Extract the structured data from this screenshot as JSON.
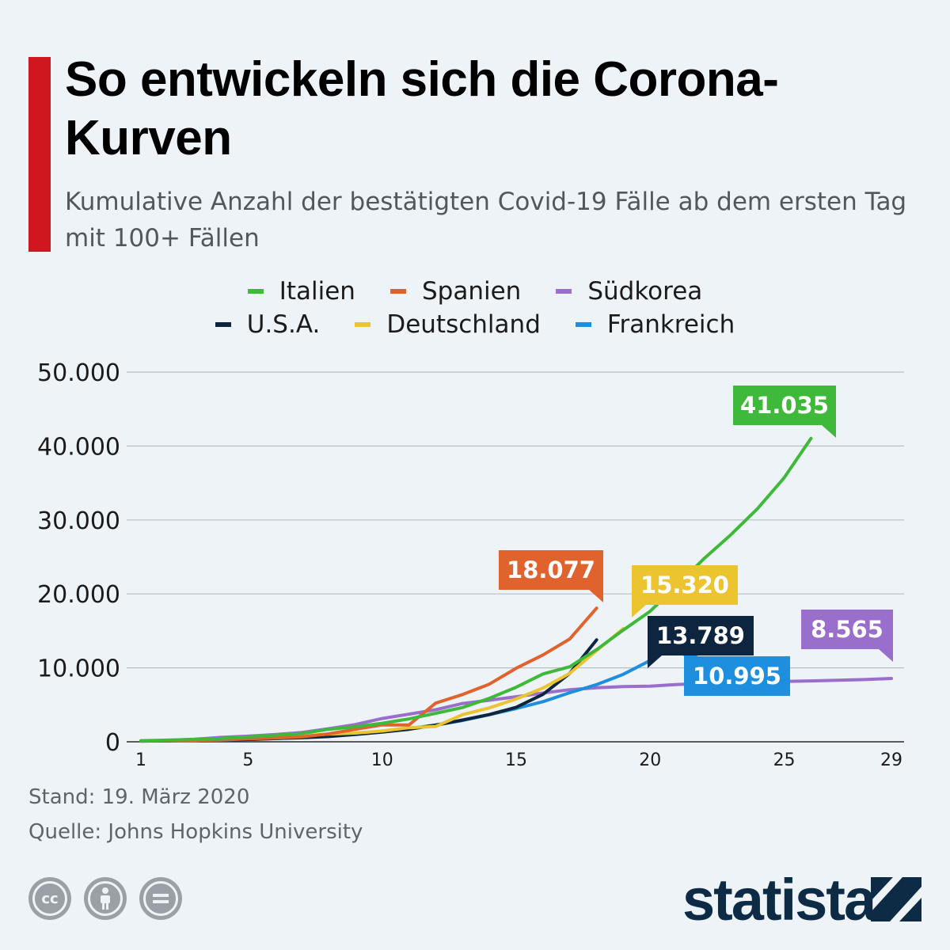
{
  "header": {
    "title": "So entwickeln sich die Corona-Kurven",
    "subtitle": "Kumulative Anzahl der bestätigten Covid-19 Fälle ab dem ersten Tag mit 100+ Fällen"
  },
  "legend": {
    "row1": [
      {
        "label": "Italien",
        "color": "#3fb93a"
      },
      {
        "label": "Spanien",
        "color": "#e0622d"
      },
      {
        "label": "Südkorea",
        "color": "#9a6ecb"
      }
    ],
    "row2": [
      {
        "label": "U.S.A.",
        "color": "#0e2540"
      },
      {
        "label": "Deutschland",
        "color": "#ebc42f"
      },
      {
        "label": "Frankreich",
        "color": "#1e8fde"
      }
    ]
  },
  "chart_data": {
    "type": "line",
    "title": "So entwickeln sich die Corona-Kurven",
    "subtitle": "Kumulative Anzahl der bestätigten Covid-19 Fälle ab dem ersten Tag mit 100+ Fällen",
    "xlabel": "",
    "ylabel": "",
    "xlim": [
      1,
      29
    ],
    "ylim": [
      0,
      50000
    ],
    "x_ticks": [
      "1",
      "5",
      "10",
      "15",
      "20",
      "25",
      "29"
    ],
    "x_tick_values": [
      1,
      5,
      10,
      15,
      20,
      25,
      29
    ],
    "y_ticks": [
      "0",
      "10.000",
      "20.000",
      "30.000",
      "40.000",
      "50.000"
    ],
    "y_tick_values": [
      0,
      10000,
      20000,
      30000,
      40000,
      50000
    ],
    "grid": true,
    "legend_position": "top-center",
    "series": [
      {
        "name": "Südkorea",
        "color": "#9a6ecb",
        "x": [
          1,
          2,
          3,
          4,
          5,
          6,
          7,
          8,
          9,
          10,
          11,
          12,
          13,
          14,
          15,
          16,
          17,
          18,
          19,
          20,
          21,
          22,
          23,
          24,
          25,
          26,
          27,
          28,
          29
        ],
        "values": [
          104,
          204,
          346,
          602,
          763,
          977,
          1261,
          1766,
          2337,
          3150,
          3736,
          4335,
          5186,
          5621,
          6088,
          6593,
          7041,
          7314,
          7478,
          7513,
          7755,
          7869,
          7979,
          8086,
          8162,
          8236,
          8320,
          8413,
          8565
        ],
        "end_label": "8.565"
      },
      {
        "name": "Frankreich",
        "color": "#1e8fde",
        "x": [
          1,
          2,
          3,
          4,
          5,
          6,
          7,
          8,
          9,
          10,
          11,
          12,
          13,
          14,
          15,
          16,
          17,
          18,
          19,
          20
        ],
        "values": [
          100,
          130,
          191,
          212,
          285,
          423,
          613,
          949,
          1126,
          1412,
          1784,
          2281,
          2876,
          3661,
          4499,
          5423,
          6633,
          7730,
          9134,
          10995
        ],
        "end_label": "10.995"
      },
      {
        "name": "U.S.A.",
        "color": "#0e2540",
        "x": [
          1,
          2,
          3,
          4,
          5,
          6,
          7,
          8,
          9,
          10,
          11,
          12,
          13,
          14,
          15,
          16,
          17,
          18
        ],
        "values": [
          100,
          124,
          158,
          221,
          319,
          435,
          541,
          704,
          994,
          1301,
          1697,
          2247,
          2943,
          3680,
          4663,
          6411,
          9259,
          13789
        ],
        "end_label": "13.789"
      },
      {
        "name": "Deutschland",
        "color": "#ebc42f",
        "x": [
          1,
          2,
          3,
          4,
          5,
          6,
          7,
          8,
          9,
          10,
          11,
          12,
          13,
          14,
          15,
          16,
          17,
          18,
          19
        ],
        "values": [
          130,
          159,
          196,
          262,
          482,
          670,
          799,
          1040,
          1176,
          1457,
          1908,
          2078,
          3675,
          4585,
          5795,
          7272,
          9257,
          12327,
          15320
        ],
        "end_label": "15.320"
      },
      {
        "name": "Spanien",
        "color": "#e0622d",
        "x": [
          1,
          2,
          3,
          4,
          5,
          6,
          7,
          8,
          9,
          10,
          11,
          12,
          13,
          14,
          15,
          16,
          17,
          18
        ],
        "values": [
          120,
          165,
          222,
          259,
          400,
          500,
          673,
          1073,
          1695,
          2277,
          2277,
          5232,
          6391,
          7798,
          9942,
          11748,
          13910,
          18077
        ],
        "end_label": "18.077"
      },
      {
        "name": "Italien",
        "color": "#3fb93a",
        "x": [
          1,
          2,
          3,
          4,
          5,
          6,
          7,
          8,
          9,
          10,
          11,
          12,
          13,
          14,
          15,
          16,
          17,
          18,
          19,
          20,
          21,
          22,
          23,
          24,
          25,
          26
        ],
        "values": [
          155,
          229,
          322,
          453,
          655,
          888,
          1128,
          1694,
          2036,
          2502,
          3089,
          3858,
          4636,
          5883,
          7375,
          9172,
          10149,
          12462,
          15113,
          17660,
          21157,
          24747,
          27980,
          31506,
          35713,
          41035
        ],
        "end_label": "41.035"
      }
    ]
  },
  "footer": {
    "date": "Stand: 19. März 2020",
    "source": "Quelle: Johns Hopkins University",
    "brand": "statista",
    "license_icons": [
      "cc-icon",
      "attribution-icon",
      "no-derivatives-icon"
    ]
  }
}
